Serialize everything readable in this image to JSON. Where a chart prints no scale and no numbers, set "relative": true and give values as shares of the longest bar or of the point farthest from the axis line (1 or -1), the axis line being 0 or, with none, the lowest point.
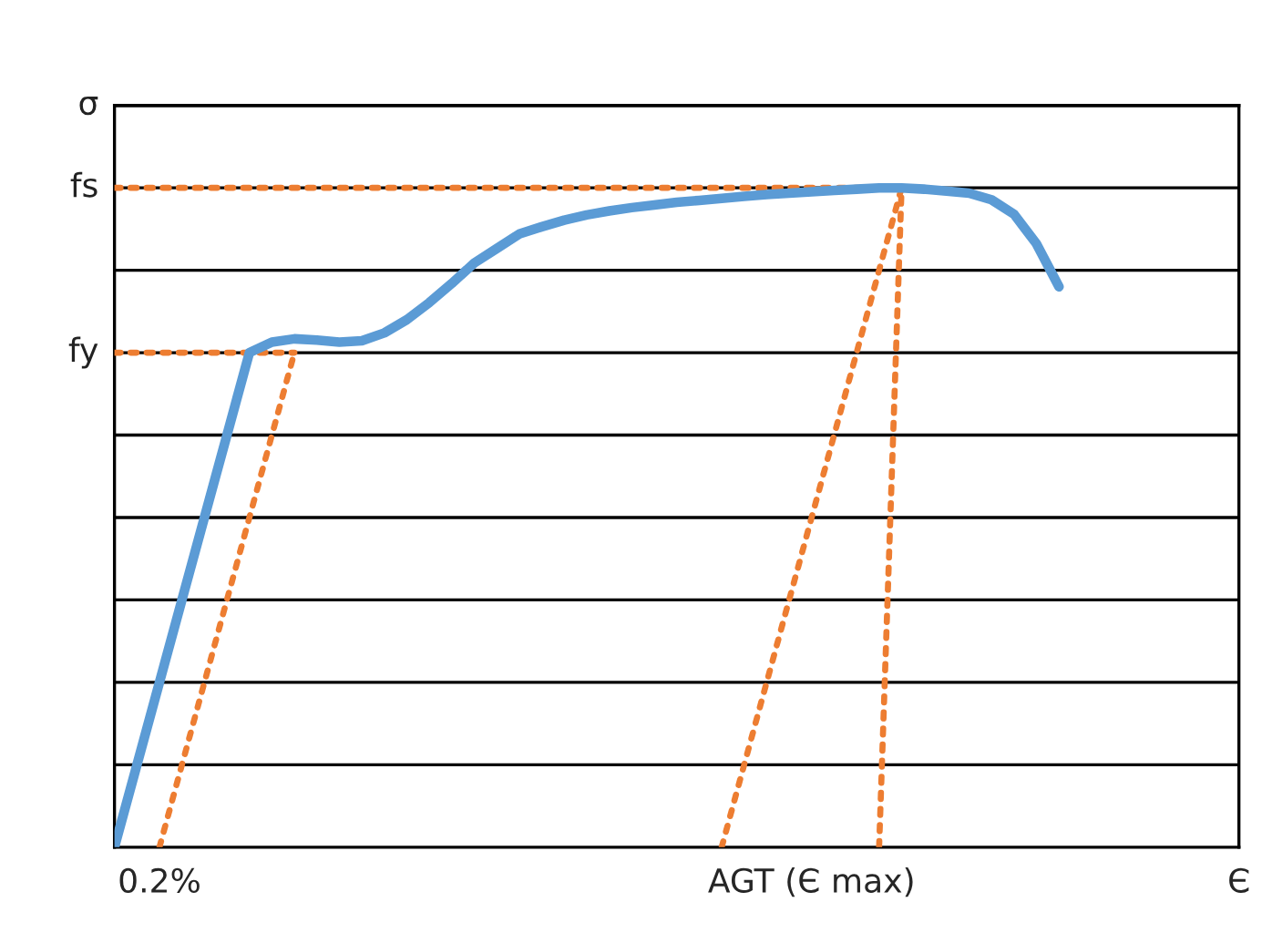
{
  "chart_data": {
    "type": "line",
    "relative": true,
    "categories": [
      null,
      null,
      "0.2%",
      null,
      null,
      null,
      null,
      null,
      null,
      null,
      null,
      null,
      null,
      null,
      null,
      null,
      null,
      null,
      null,
      null,
      null,
      null,
      null,
      null,
      null,
      null,
      null,
      null,
      null,
      null,
      null,
      "AGT (Є max)",
      null,
      null,
      null,
      null,
      null,
      null,
      null,
      null,
      null,
      null,
      null,
      null,
      null,
      null,
      null,
      null,
      null,
      null,
      "Є"
    ],
    "ref_lines": [
      {
        "axis": "y",
        "value": 0.125,
        "color": "#000000"
      },
      {
        "axis": "y",
        "value": 0.25,
        "color": "#000000"
      },
      {
        "axis": "y",
        "value": 0.375,
        "color": "#000000"
      },
      {
        "axis": "y",
        "value": 0.5,
        "color": "#000000"
      },
      {
        "axis": "y",
        "value": 0.625,
        "color": "#000000"
      },
      {
        "axis": "y",
        "value": 0.75,
        "label": "fy",
        "color": "#000000"
      },
      {
        "axis": "y",
        "value": 0.875,
        "color": "#000000"
      },
      {
        "axis": "y",
        "value": 1.0,
        "label": "fs",
        "color": "#000000"
      },
      {
        "axis": "y",
        "value": 1.125,
        "label": "σ",
        "color": "#000000"
      }
    ],
    "series": [
      {
        "color": "#5b9bd5",
        "line_style": "solid",
        "values": [
          0,
          0.125,
          0.25,
          0.375,
          0.5,
          0.625,
          0.75,
          0.766,
          0.771,
          0.769,
          0.766,
          0.768,
          0.78,
          0.8,
          0.826,
          0.855,
          0.886,
          0.908,
          0.93,
          0.941,
          0.951,
          0.959,
          0.965,
          0.97,
          0.974,
          0.978,
          0.981,
          0.984,
          0.987,
          0.99,
          0.992,
          0.994,
          0.996,
          0.998,
          1.0,
          1.0,
          0.998,
          0.995,
          0.992,
          0.982,
          0.96,
          0.915,
          0.85,
          null,
          null,
          null,
          null,
          null,
          null,
          null,
          null
        ]
      },
      {
        "color": "#ed7d31",
        "line_style": "dotted",
        "values": [
          1.0,
          1.0,
          1.0,
          1.0,
          1.0,
          1.0,
          1.0,
          1.0,
          1.0,
          1.0,
          1.0,
          1.0,
          1.0,
          1.0,
          1.0,
          1.0,
          1.0,
          1.0,
          1.0,
          1.0,
          1.0,
          1.0,
          1.0,
          1.0,
          1.0,
          1.0,
          1.0,
          1.0,
          1.0,
          1.0,
          1.0,
          1.0,
          1.0,
          1.0,
          1.0,
          1.0,
          null,
          null,
          null,
          null,
          null,
          null,
          null,
          null,
          null,
          null,
          null,
          null,
          null,
          null,
          null
        ]
      },
      {
        "color": "#ed7d31",
        "line_style": "dotted",
        "values": [
          0.75,
          0.75,
          0.75,
          0.75,
          0.75,
          0.75,
          0.75,
          0.75,
          0.75,
          null,
          null,
          null,
          null,
          null,
          null,
          null,
          null,
          null,
          null,
          null,
          null,
          null,
          null,
          null,
          null,
          null,
          null,
          null,
          null,
          null,
          null,
          null,
          null,
          null,
          null,
          null,
          null,
          null,
          null,
          null,
          null,
          null,
          null,
          null,
          null,
          null,
          null,
          null,
          null,
          null,
          null
        ]
      },
      {
        "color": "#ed7d31",
        "line_style": "dotted",
        "values": [
          null,
          null,
          0,
          0.125,
          0.25,
          0.375,
          0.5,
          0.625,
          0.75,
          null,
          null,
          null,
          null,
          null,
          null,
          null,
          null,
          null,
          null,
          null,
          null,
          null,
          null,
          null,
          null,
          null,
          null,
          null,
          null,
          null,
          null,
          null,
          null,
          null,
          null,
          null,
          null,
          null,
          null,
          null,
          null,
          null,
          null,
          null,
          null,
          null,
          null,
          null,
          null,
          null,
          null
        ]
      },
      {
        "color": "#ed7d31",
        "line_style": "dotted",
        "values": [
          null,
          null,
          null,
          null,
          null,
          null,
          null,
          null,
          null,
          null,
          null,
          null,
          null,
          null,
          null,
          null,
          null,
          null,
          null,
          null,
          null,
          null,
          null,
          null,
          null,
          null,
          null,
          0,
          0.125,
          0.25,
          0.375,
          0.5,
          0.625,
          0.75,
          0.875,
          1.0,
          null,
          null,
          null,
          null,
          null,
          null,
          null,
          null,
          null,
          null,
          null,
          null,
          null,
          null,
          null
        ]
      },
      {
        "color": "#ed7d31",
        "line_style": "dotted",
        "values": [
          null,
          null,
          null,
          null,
          null,
          null,
          null,
          null,
          null,
          null,
          null,
          null,
          null,
          null,
          null,
          null,
          null,
          null,
          null,
          null,
          null,
          null,
          null,
          null,
          null,
          null,
          null,
          null,
          null,
          null,
          null,
          null,
          null,
          null,
          0,
          1.0,
          null,
          null,
          null,
          null,
          null,
          null,
          null,
          null,
          null,
          null,
          null,
          null,
          null,
          null,
          null
        ]
      }
    ]
  }
}
